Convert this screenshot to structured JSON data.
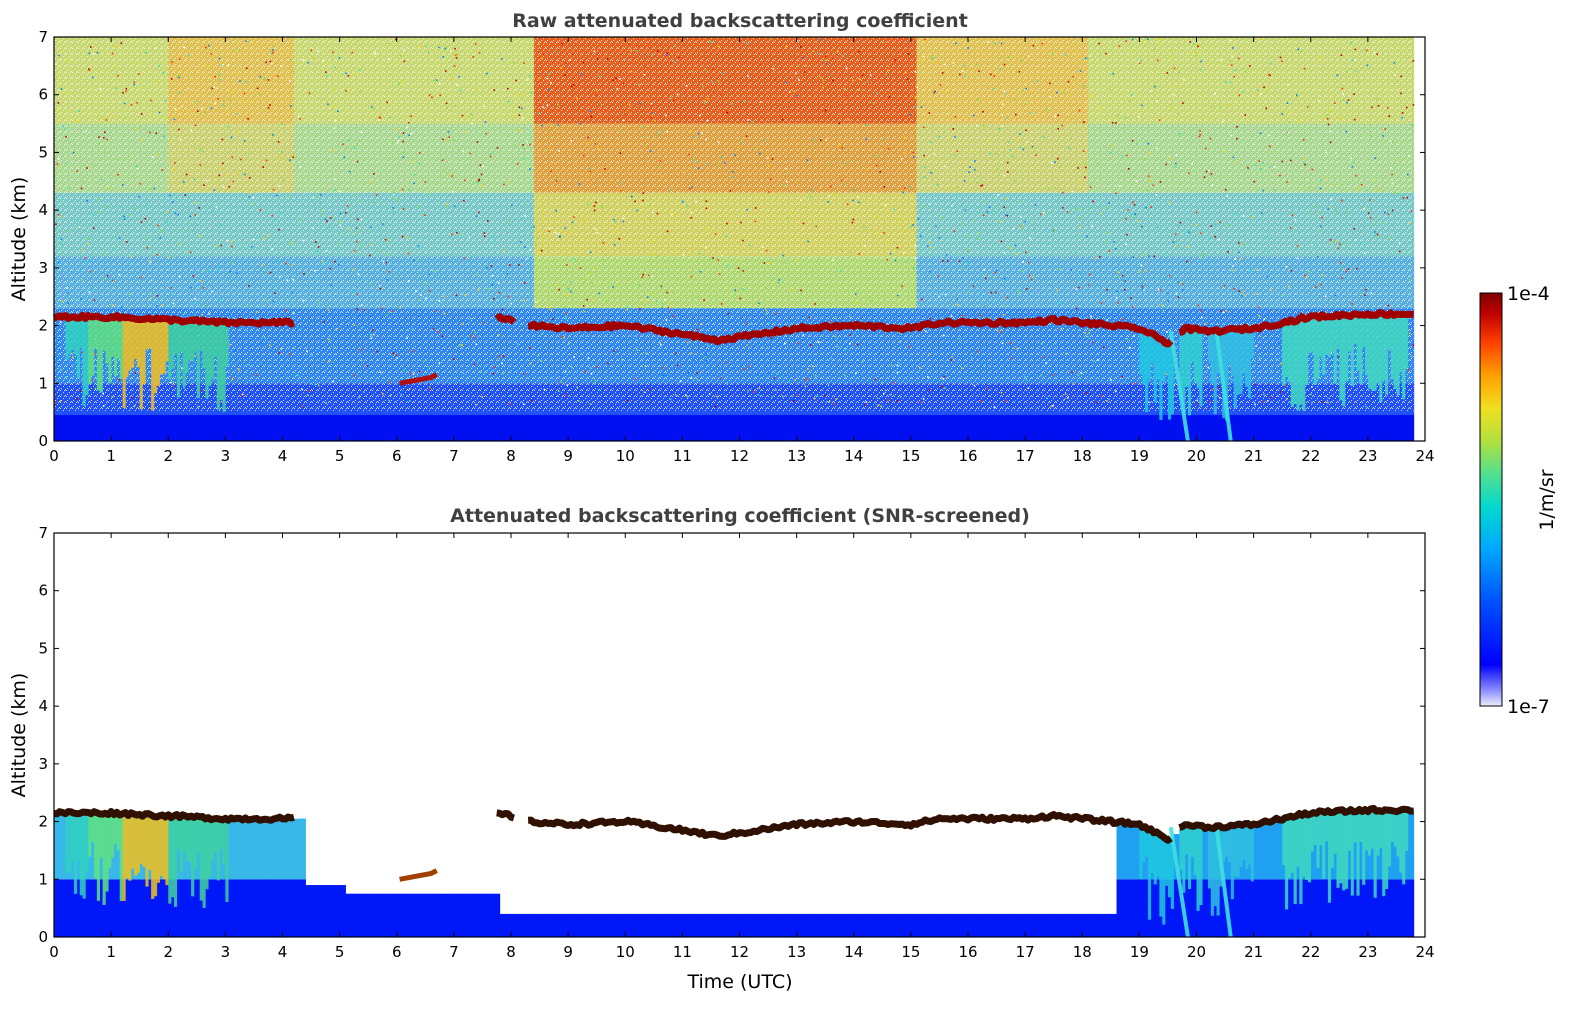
{
  "chart_data": [
    {
      "type": "heatmap",
      "title": "Raw attenuated backscattering coefficient",
      "ylabel": "Altitude (km)",
      "xlabel": "",
      "xlim": [
        0,
        24
      ],
      "ylim": [
        0,
        7
      ],
      "x_ticks": [
        "0",
        "1",
        "2",
        "3",
        "4",
        "5",
        "6",
        "7",
        "8",
        "9",
        "10",
        "11",
        "12",
        "13",
        "14",
        "15",
        "16",
        "17",
        "18",
        "19",
        "20",
        "21",
        "22",
        "23",
        "24"
      ],
      "y_ticks": [
        "0",
        "1",
        "2",
        "3",
        "4",
        "5",
        "6",
        "7"
      ],
      "data_end_time": 23.8,
      "screened": false,
      "cloud_base_km": {
        "time": [
          0,
          1,
          2,
          3,
          4,
          4.2,
          7.7,
          8,
          8.3,
          9,
          10,
          11,
          11.6,
          12,
          13,
          14,
          15,
          15.5,
          16,
          17,
          17.5,
          18,
          19,
          19.5,
          19.8,
          20.2,
          21,
          22,
          23,
          23.8
        ],
        "altitude": [
          2.15,
          2.15,
          2.1,
          2.05,
          2.05,
          2.05,
          2.15,
          2.1,
          2.0,
          1.95,
          2.0,
          1.85,
          1.75,
          1.8,
          1.95,
          2.0,
          1.95,
          2.05,
          2.05,
          2.05,
          2.1,
          2.05,
          1.95,
          1.7,
          1.95,
          1.9,
          1.95,
          2.15,
          2.2,
          2.2
        ]
      }
    },
    {
      "type": "heatmap",
      "title": "Attenuated backscattering coefficient (SNR-screened)",
      "ylabel": "Altitude (km)",
      "xlabel": "Time (UTC)",
      "xlim": [
        0,
        24
      ],
      "ylim": [
        0,
        7
      ],
      "x_ticks": [
        "0",
        "1",
        "2",
        "3",
        "4",
        "5",
        "6",
        "7",
        "8",
        "9",
        "10",
        "11",
        "12",
        "13",
        "14",
        "15",
        "16",
        "17",
        "18",
        "19",
        "20",
        "21",
        "22",
        "23",
        "24"
      ],
      "y_ticks": [
        "0",
        "1",
        "2",
        "3",
        "4",
        "5",
        "6",
        "7"
      ],
      "data_end_time": 23.8,
      "screened": true,
      "cloud_base_km": {
        "time": [
          0,
          1,
          2,
          3,
          4,
          4.2,
          7.7,
          8,
          8.3,
          9,
          10,
          11,
          11.6,
          12,
          13,
          14,
          15,
          15.5,
          16,
          17,
          17.5,
          18,
          19,
          19.5,
          19.8,
          20.2,
          21,
          22,
          23,
          23.8
        ],
        "altitude": [
          2.15,
          2.15,
          2.1,
          2.05,
          2.05,
          2.05,
          2.15,
          2.1,
          2.0,
          1.95,
          2.0,
          1.85,
          1.75,
          1.8,
          1.95,
          2.0,
          1.95,
          2.05,
          2.05,
          2.05,
          2.1,
          2.05,
          1.95,
          1.7,
          1.95,
          1.9,
          1.95,
          2.15,
          2.2,
          2.2
        ]
      }
    }
  ],
  "colorbar": {
    "max_label": "1e-4",
    "min_label": "1e-7",
    "label": "1/m/sr",
    "scale": "log",
    "colors": [
      "#e8e8f8",
      "#8080ff",
      "#0000ff",
      "#0040ff",
      "#0090ff",
      "#00c8e0",
      "#30e0b0",
      "#90e060",
      "#e0e020",
      "#ffb000",
      "#ff5000",
      "#d01010",
      "#800000"
    ]
  }
}
